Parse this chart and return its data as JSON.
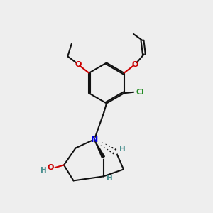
{
  "bg_color": "#eeeeee",
  "bond_color": "#111111",
  "N_color": "#0000dd",
  "O_color": "#cc0000",
  "Cl_color": "#228b22",
  "H_color": "#4a8f8f",
  "lw": 1.5,
  "figsize": [
    3.0,
    3.0
  ],
  "dpi": 100,
  "xlim": [
    0,
    10
  ],
  "ylim": [
    0,
    10
  ]
}
